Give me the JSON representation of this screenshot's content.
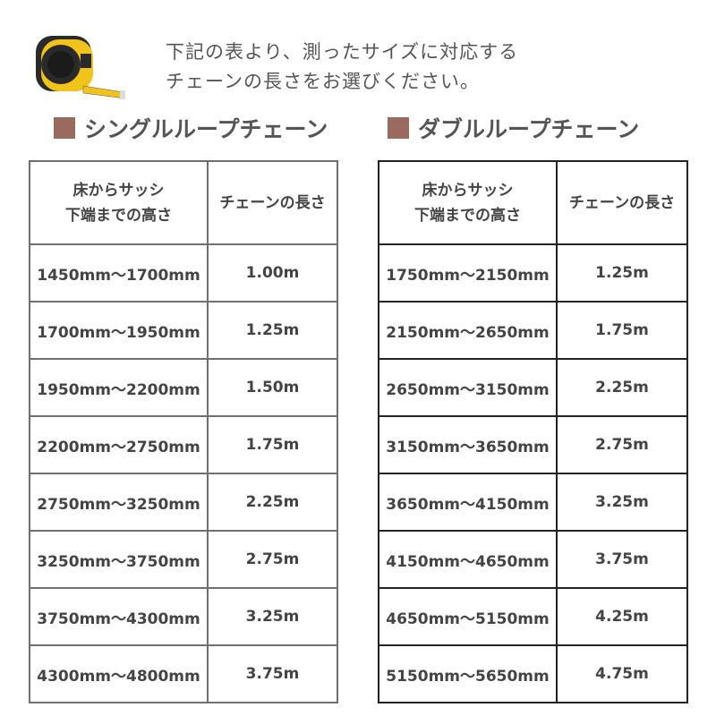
{
  "intro": {
    "line1": "下記の表より、測ったサイズに対応する",
    "line2": "チェーンの長さをお選びください。"
  },
  "icon": "tape-measure-icon",
  "colors": {
    "heading_square": "#9b6a5f",
    "tape_yellow": "#f2c31a"
  },
  "single": {
    "title": "シングルループチェーン",
    "header": {
      "col1_line1": "床からサッシ",
      "col1_line2": "下端までの高さ",
      "col2": "チェーンの長さ"
    },
    "rows": [
      {
        "range": "1450mm〜1700mm",
        "length": "1.00m"
      },
      {
        "range": "1700mm〜1950mm",
        "length": "1.25m"
      },
      {
        "range": "1950mm〜2200mm",
        "length": "1.50m"
      },
      {
        "range": "2200mm〜2750mm",
        "length": "1.75m"
      },
      {
        "range": "2750mm〜3250mm",
        "length": "2.25m"
      },
      {
        "range": "3250mm〜3750mm",
        "length": "2.75m"
      },
      {
        "range": "3750mm〜4300mm",
        "length": "3.25m"
      },
      {
        "range": "4300mm〜4800mm",
        "length": "3.75m"
      }
    ]
  },
  "double": {
    "title": "ダブルループチェーン",
    "header": {
      "col1_line1": "床からサッシ",
      "col1_line2": "下端までの高さ",
      "col2": "チェーンの長さ"
    },
    "rows": [
      {
        "range": "1750mm〜2150mm",
        "length": "1.25m"
      },
      {
        "range": "2150mm〜2650mm",
        "length": "1.75m"
      },
      {
        "range": "2650mm〜3150mm",
        "length": "2.25m"
      },
      {
        "range": "3150mm〜3650mm",
        "length": "2.75m"
      },
      {
        "range": "3650mm〜4150mm",
        "length": "3.25m"
      },
      {
        "range": "4150mm〜4650mm",
        "length": "3.75m"
      },
      {
        "range": "4650mm〜5150mm",
        "length": "4.25m"
      },
      {
        "range": "5150mm〜5650mm",
        "length": "4.75m"
      }
    ]
  }
}
